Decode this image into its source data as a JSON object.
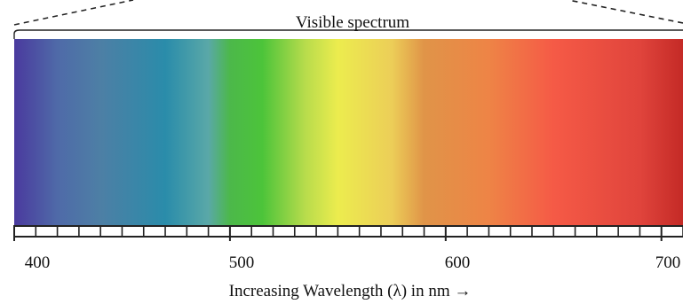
{
  "diagram": {
    "title": "Visible spectrum",
    "axis_label": "Increasing Wavelength (λ) in nm →",
    "tick_labels": [
      "400",
      "500",
      "600",
      "700"
    ],
    "range_nm": [
      400,
      710
    ],
    "major_tick_step_nm": 100,
    "minor_tick_step_nm": 10,
    "spectrum_colors": [
      {
        "nm": 400,
        "color": "#4a3a9e"
      },
      {
        "nm": 420,
        "color": "#4f6aa8"
      },
      {
        "nm": 440,
        "color": "#4d7fa5"
      },
      {
        "nm": 470,
        "color": "#2a8caa"
      },
      {
        "nm": 490,
        "color": "#5aa8a8"
      },
      {
        "nm": 500,
        "color": "#4cb84a"
      },
      {
        "nm": 515,
        "color": "#4cc43a"
      },
      {
        "nm": 535,
        "color": "#b8dc4c"
      },
      {
        "nm": 550,
        "color": "#ecec4e"
      },
      {
        "nm": 575,
        "color": "#ecce58"
      },
      {
        "nm": 590,
        "color": "#e09448"
      },
      {
        "nm": 620,
        "color": "#ee8446"
      },
      {
        "nm": 650,
        "color": "#f55a46"
      },
      {
        "nm": 690,
        "color": "#e0443c"
      },
      {
        "nm": 710,
        "color": "#c42a26"
      }
    ]
  }
}
